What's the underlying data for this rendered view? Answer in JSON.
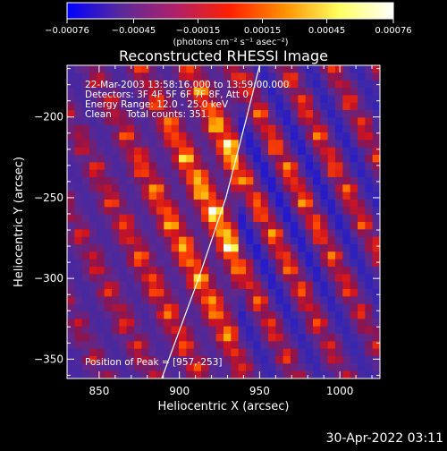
{
  "chart_data": {
    "type": "heatmap",
    "title": "Reconstructed RHESSI Image",
    "xlabel": "Heliocentric X (arcsec)",
    "ylabel": "Heliocentric Y (arcsec)",
    "xlim": [
      830,
      1025
    ],
    "ylim": [
      -362,
      -168
    ],
    "x_ticks": [
      850,
      900,
      950,
      1000
    ],
    "y_ticks": [
      -200,
      -250,
      -300,
      -350
    ],
    "x_tick_labels": [
      "850",
      "900",
      "950",
      "1000"
    ],
    "y_tick_labels": [
      "−200",
      "−250",
      "−300",
      "−350"
    ],
    "colorbar": {
      "min": -0.00076,
      "max": 0.00076,
      "ticks": [
        -0.00076,
        -0.00045,
        -0.00015,
        0.00015,
        0.00045,
        0.00076
      ],
      "tick_labels": [
        "−0.00076",
        "−0.00045",
        "−0.00015",
        "0.00015",
        "0.00045",
        "0.00076"
      ],
      "unit_label": "(photons cm⁻² s⁻¹ asec⁻²)",
      "colormap": [
        "#0000ff",
        "#5a2a9a",
        "#b0206a",
        "#ff2000",
        "#ff9000",
        "#ffff60",
        "#ffffff"
      ]
    },
    "annotations": [
      "22-Mar-2003 13:58:16.000 to 13:59:00.000",
      "Detectors: 3F 4F 5F 6F 7F 8F, Att 0",
      "Energy Range: 12.0 - 25.0 keV",
      "Clean     Total counts: 351."
    ],
    "peak_label": "Position of Peak = [957,-253]",
    "peak": [
      957,
      -253
    ],
    "limb_line": [
      [
        889,
        -362
      ],
      [
        912,
        -300
      ],
      [
        929,
        -250
      ],
      [
        942,
        -200
      ],
      [
        950,
        -168
      ]
    ]
  },
  "footer": {
    "timestamp": "30-Apr-2022 03:11"
  }
}
